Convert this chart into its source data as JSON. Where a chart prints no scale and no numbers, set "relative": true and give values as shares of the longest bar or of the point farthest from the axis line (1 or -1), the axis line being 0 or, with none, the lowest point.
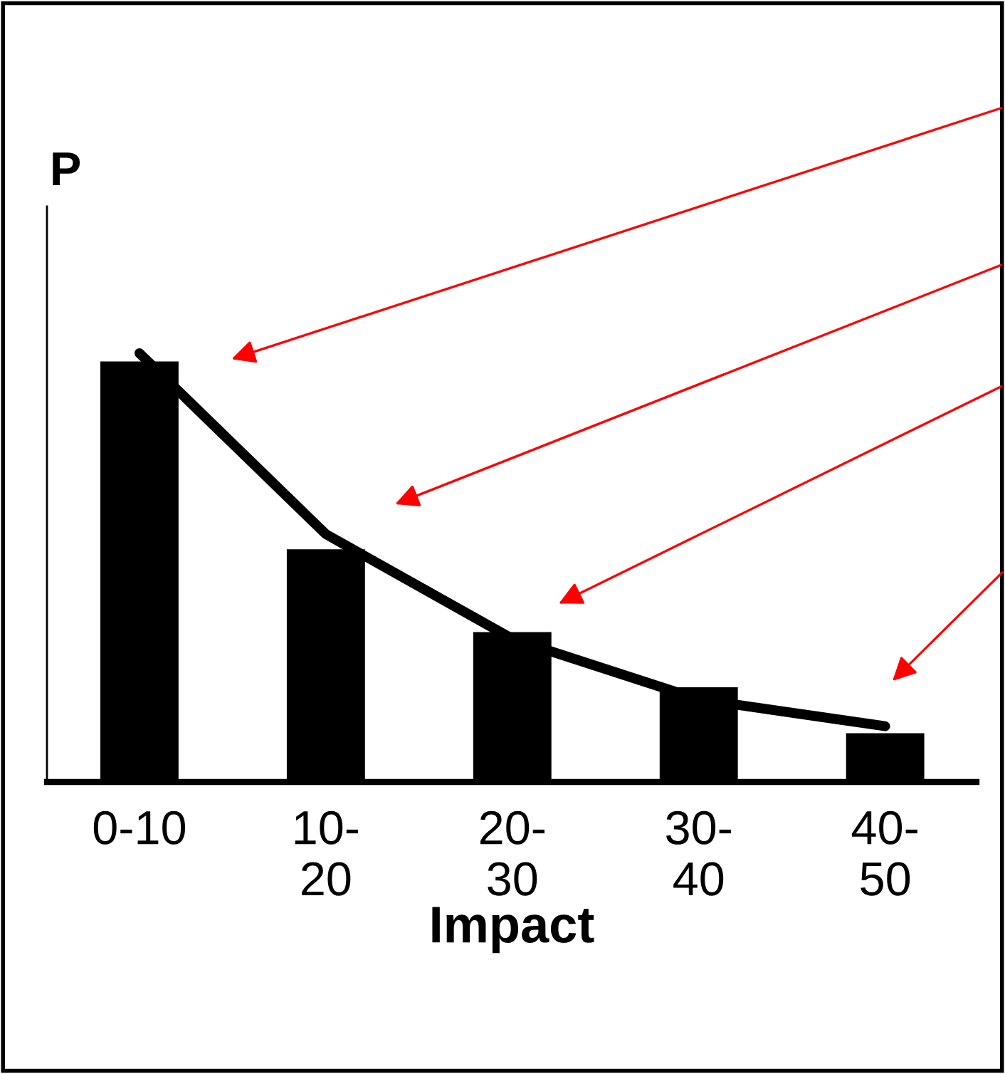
{
  "chart_data": {
    "type": "bar",
    "relative": true,
    "xlabel": "Impact",
    "ylabel": "P",
    "categories": [
      "0-10",
      "10-\n20",
      "20-\n30",
      "30-\n40",
      "40-\n50"
    ],
    "values": [
      0.983,
      0.545,
      0.352,
      0.223,
      0.116
    ],
    "color": "#000000",
    "series": [
      {
        "type": "line",
        "color": "#000000",
        "values": [
          1,
          0.578,
          0.334,
          0.193,
          0.13
        ]
      }
    ],
    "grid": false,
    "legend": false
  }
}
